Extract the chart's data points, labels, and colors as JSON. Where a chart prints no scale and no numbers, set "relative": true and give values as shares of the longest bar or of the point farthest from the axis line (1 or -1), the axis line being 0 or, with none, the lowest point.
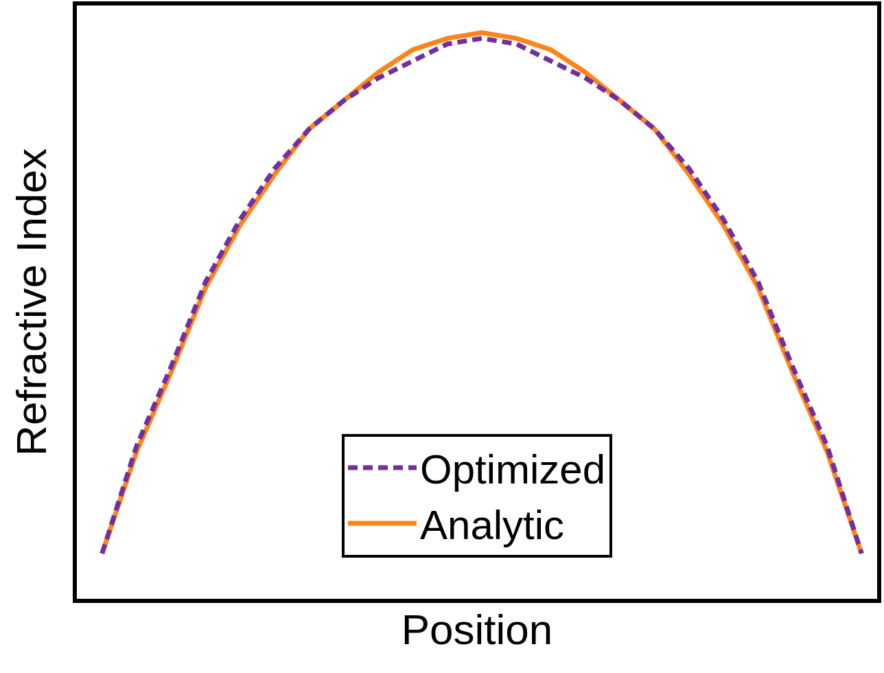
{
  "chart_data": {
    "type": "line",
    "relative": true,
    "xlabel": "Position",
    "ylabel": "Refractive Index",
    "categories": [
      null,
      null,
      null,
      null,
      null,
      null,
      null,
      null,
      null,
      null,
      null,
      null,
      null,
      null,
      null,
      null,
      null,
      null,
      null,
      null,
      null,
      null,
      null
    ],
    "series": [
      {
        "name": "Optimized",
        "color": "#7030a0",
        "line_style": "dashed",
        "values": [
          0.08,
          0.27,
          0.41,
          0.56,
          0.67,
          0.76,
          0.83,
          0.88,
          0.92,
          0.95,
          0.98,
          0.99,
          0.98,
          0.95,
          0.92,
          0.88,
          0.83,
          0.76,
          0.67,
          0.56,
          0.41,
          0.27,
          0.08
        ]
      },
      {
        "name": "Analytic",
        "color": "#ff8419",
        "line_style": "solid",
        "values": [
          0.08,
          0.26,
          0.4,
          0.55,
          0.66,
          0.75,
          0.83,
          0.88,
          0.93,
          0.97,
          0.99,
          1,
          0.99,
          0.97,
          0.93,
          0.88,
          0.83,
          0.75,
          0.66,
          0.55,
          0.4,
          0.26,
          0.08
        ]
      }
    ],
    "legend": "bottom",
    "marker": "none",
    "tick_labels": false
  }
}
